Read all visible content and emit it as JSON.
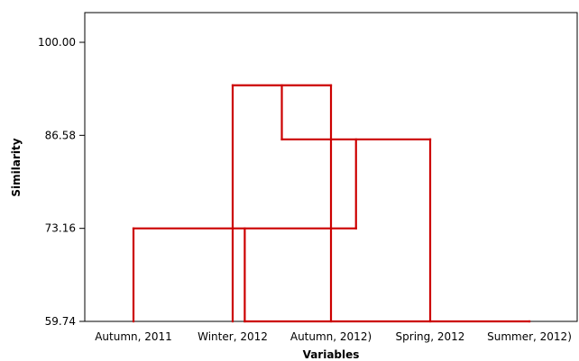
{
  "chart_data": {
    "type": "dendrogram",
    "title": "",
    "xlabel": "Variables",
    "ylabel": "Similarity",
    "leaves": [
      "Autumn, 2011",
      "Winter, 2012",
      "Autumn, 2012)",
      "Spring, 2012",
      "Summer, 2012)"
    ],
    "y_ticks": [
      "59.74",
      "73.16",
      "86.58",
      "100.00"
    ],
    "y_tick_values": [
      59.74,
      73.16,
      86.58,
      100.0
    ],
    "ylim": [
      100.0,
      55.0
    ],
    "merges": [
      {
        "members": [
          "Winter, 2012",
          "Autumn, 2012)"
        ],
        "similarity": 93.8
      },
      {
        "members": [
          "Winter, 2012",
          "Autumn, 2012)",
          "Spring, 2012"
        ],
        "similarity": 86.0
      },
      {
        "members": [
          "Autumn, 2011",
          "Winter, 2012",
          "Autumn, 2012)",
          "Spring, 2012"
        ],
        "similarity": 73.16
      },
      {
        "members": [
          "Autumn, 2011",
          "Winter, 2012",
          "Autumn, 2012)",
          "Spring, 2012",
          "Summer, 2012)"
        ],
        "similarity": 59.74
      }
    ],
    "line_color": "#cc0000"
  }
}
